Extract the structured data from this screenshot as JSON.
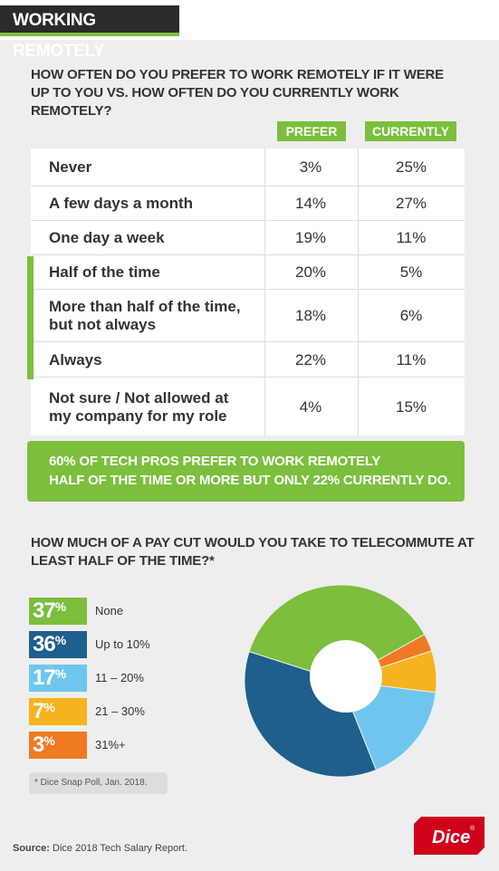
{
  "header": {
    "tag": "WORKING REMOTELY"
  },
  "question1": "HOW OFTEN DO YOU PREFER TO WORK REMOTELY IF IT WERE UP TO YOU VS. HOW OFTEN DO YOU CURRENTLY WORK REMOTELY?",
  "columns": {
    "prefer": "PREFER",
    "currently": "CURRENTLY"
  },
  "rows": [
    {
      "label": "Never",
      "prefer": "3%",
      "currently": "25%"
    },
    {
      "label": "A few days a month",
      "prefer": "14%",
      "currently": "27%"
    },
    {
      "label": "One day a week",
      "prefer": "19%",
      "currently": "11%"
    },
    {
      "label": "Half of the time",
      "prefer": "20%",
      "currently": "5%"
    },
    {
      "label": "More than half of the time, but not always",
      "prefer": "18%",
      "currently": "6%"
    },
    {
      "label": "Always",
      "prefer": "22%",
      "currently": "11%"
    },
    {
      "label": "Not sure / Not allowed at my company for my role",
      "prefer": "4%",
      "currently": "15%"
    }
  ],
  "callout": {
    "line1": "60% OF TECH PROS PREFER TO WORK REMOTELY",
    "line2": "HALF OF THE TIME OR MORE BUT ONLY 22% CURRENTLY DO."
  },
  "question2": "HOW MUCH OF A PAY CUT WOULD YOU TAKE TO TELECOMMUTE AT LEAST HALF OF THE TIME?*",
  "chart_data": {
    "type": "pie",
    "categories": [
      "None",
      "Up to 10%",
      "11 – 20%",
      "21 – 30%",
      "31%+"
    ],
    "values": [
      37,
      36,
      17,
      7,
      3
    ],
    "colors": [
      "#7bbf3c",
      "#1e5f8c",
      "#6ec6ee",
      "#f5b31f",
      "#f07a22"
    ],
    "donut": true
  },
  "legend_unit": "%",
  "note": "* Dice Snap Poll, Jan. 2018.",
  "source": {
    "label": "Source:",
    "text": " Dice 2018 Tech Salary Report."
  },
  "logo": {
    "text": "Dice",
    "mark": "®"
  }
}
